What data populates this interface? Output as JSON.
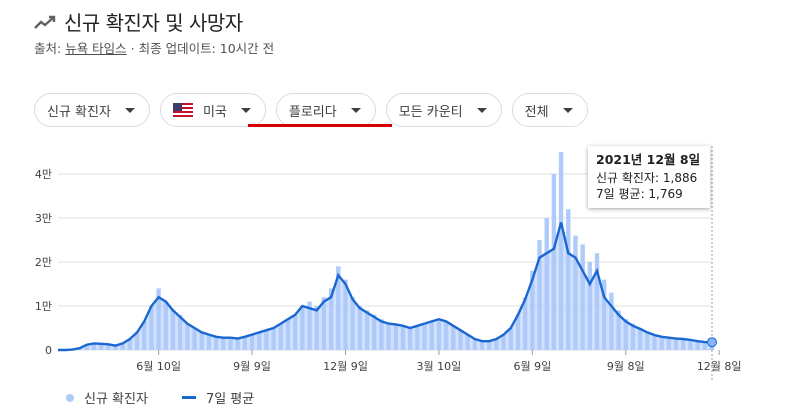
{
  "header": {
    "title": "신규 확진자 및 사망자",
    "source_prefix": "출처: ",
    "source_link": "뉴욕 타임스",
    "source_suffix": " · 최종 업데이트: 10시간 전"
  },
  "filters": [
    {
      "label": "신규 확진자"
    },
    {
      "label": "미국"
    },
    {
      "label": "플로리다"
    },
    {
      "label": "모든 카운티"
    },
    {
      "label": "전체"
    }
  ],
  "tooltip": {
    "date": "2021년 12월 8일",
    "cases_line": "신규 확진자: 1,886",
    "avg_line": "7일 평균: 1,769"
  },
  "legend": {
    "bars_label": "신규 확진자",
    "line_label": "7일 평균"
  },
  "colors": {
    "bar": "#aecbfa",
    "line": "#1a67d2",
    "grid": "#e0e0e0",
    "highlight": "#d40000"
  },
  "chart_data": {
    "type": "bar",
    "ylim": [
      0,
      45000
    ],
    "ytick_values": [
      0,
      10000,
      20000,
      30000,
      40000
    ],
    "ytick_labels": [
      "0",
      "1만",
      "2만",
      "3만",
      "4만"
    ],
    "xtick_labels": [
      "6월 10일",
      "9월 9일",
      "12월 9일",
      "3월 10일",
      "6월 9일",
      "9월 8일",
      "12월 8일"
    ],
    "xtick_indices": [
      14,
      27,
      40,
      53,
      66,
      79,
      92
    ],
    "series": [
      {
        "name": "신규 확진자",
        "kind": "bar"
      },
      {
        "name": "7일 평균",
        "kind": "line"
      }
    ],
    "weekly_bars": [
      0,
      0,
      100,
      400,
      1200,
      1500,
      1400,
      1300,
      1000,
      1500,
      2500,
      4000,
      6500,
      10000,
      14000,
      11000,
      9000,
      8000,
      6000,
      5000,
      4000,
      3500,
      3000,
      2800,
      2800,
      2600,
      3000,
      3500,
      4000,
      4500,
      5000,
      6000,
      7000,
      8000,
      10000,
      11000,
      10000,
      12000,
      14000,
      19000,
      16000,
      12000,
      10000,
      9000,
      8000,
      7000,
      6000,
      6000,
      5500,
      5000,
      5500,
      6000,
      6500,
      7000,
      6500,
      5500,
      4500,
      3500,
      2500,
      2000,
      2000,
      2500,
      3500,
      5000,
      8000,
      12000,
      18000,
      25000,
      30000,
      40000,
      45000,
      32000,
      26000,
      24000,
      20000,
      22000,
      16000,
      13000,
      9000,
      7000,
      6000,
      5000,
      4000,
      3500,
      3000,
      2800,
      2600,
      2500,
      2400,
      2200,
      2000,
      1886
    ],
    "seven_day_average": [
      0,
      0,
      100,
      400,
      1200,
      1500,
      1400,
      1300,
      1000,
      1500,
      2500,
      4000,
      6500,
      10000,
      12000,
      11000,
      9000,
      7500,
      6000,
      5000,
      4000,
      3500,
      3000,
      2800,
      2800,
      2600,
      3000,
      3500,
      4000,
      4500,
      5000,
      6000,
      7000,
      8000,
      10000,
      9500,
      9000,
      11000,
      12000,
      17000,
      15000,
      11500,
      9500,
      8500,
      7500,
      6500,
      6000,
      5800,
      5500,
      5000,
      5500,
      6000,
      6500,
      7000,
      6500,
      5500,
      4500,
      3500,
      2500,
      2000,
      2000,
      2500,
      3500,
      5000,
      8000,
      11500,
      16000,
      21000,
      22000,
      23000,
      29000,
      22000,
      21000,
      18000,
      15000,
      18000,
      12000,
      10000,
      8000,
      6500,
      5500,
      4800,
      4000,
      3400,
      3000,
      2800,
      2600,
      2500,
      2300,
      2000,
      1800,
      1769
    ]
  }
}
